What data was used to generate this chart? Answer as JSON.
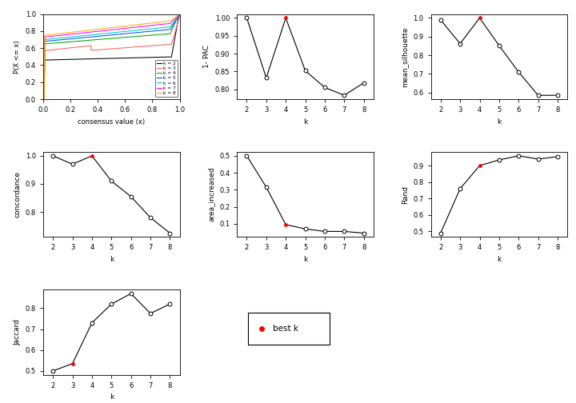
{
  "k_values": [
    2,
    3,
    4,
    5,
    6,
    7,
    8
  ],
  "pac_1minus": [
    1.0,
    0.832,
    1.0,
    0.852,
    0.805,
    0.783,
    0.818
  ],
  "pac_best_k": 4,
  "mean_silhouette": [
    0.99,
    0.862,
    1.0,
    0.852,
    0.71,
    0.585,
    0.585
  ],
  "silhouette_best_k": 4,
  "concordance": [
    1.0,
    0.97,
    1.0,
    0.91,
    0.855,
    0.78,
    0.725
  ],
  "concordance_best_k": 4,
  "area_increased": [
    0.5,
    0.315,
    0.095,
    0.07,
    0.055,
    0.055,
    0.045
  ],
  "area_best_k": 4,
  "rand": [
    0.49,
    0.76,
    0.9,
    0.935,
    0.96,
    0.94,
    0.955
  ],
  "rand_best_k": 4,
  "jaccard": [
    0.5,
    0.535,
    0.73,
    0.82,
    0.87,
    0.775,
    0.82
  ],
  "jaccard_best_k": 3,
  "ecdf_colors": [
    "#000000",
    "#ff6060",
    "#00aa00",
    "#0055ff",
    "#00cccc",
    "#ff00ff",
    "#ffaa00"
  ],
  "ecdf_labels": [
    "k = 2",
    "k = 3",
    "k = 4",
    "k = 5",
    "k = 6",
    "k = 7",
    "k = 8"
  ],
  "background_color": "#ffffff",
  "legend_best_label": "• best k"
}
